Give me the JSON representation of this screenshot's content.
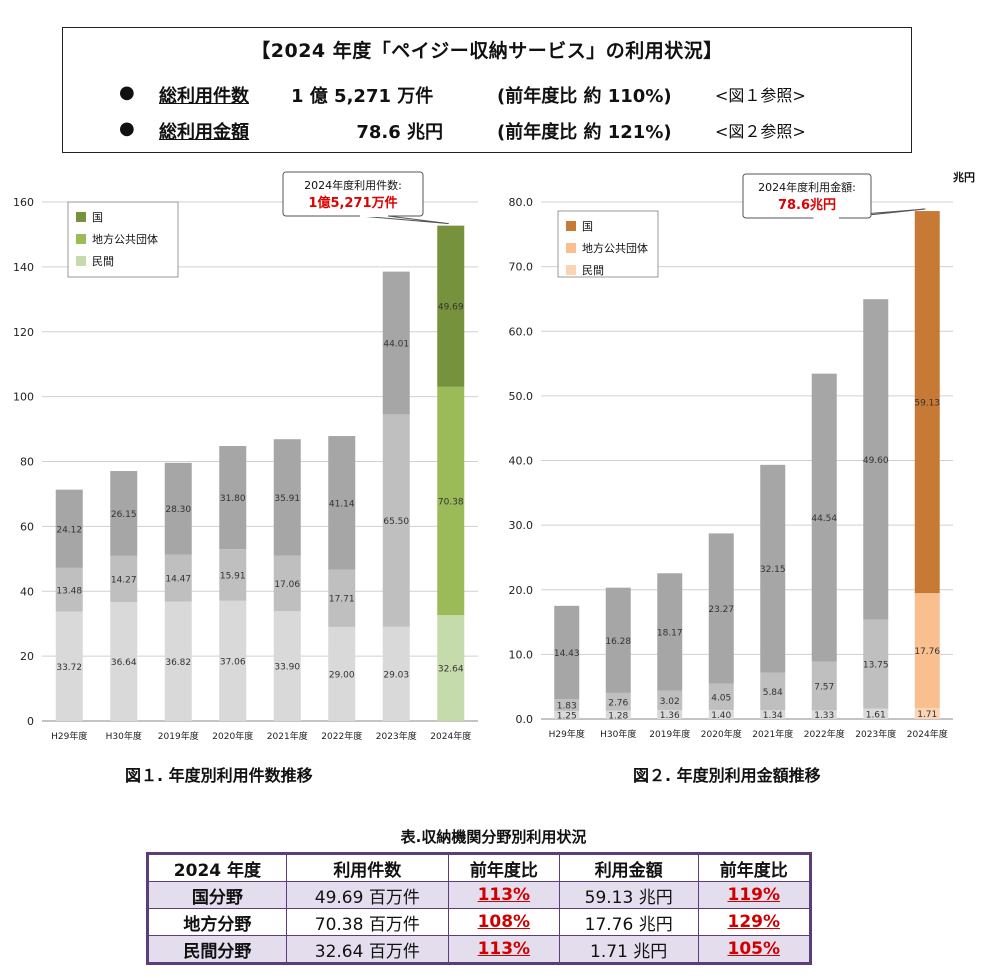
{
  "summary": {
    "title": "【2024 年度「ペイジー収納サービス」の利用状況】",
    "rows": [
      {
        "bullet": "●",
        "label": "総利用件数",
        "value": "1 億 5,271 万件",
        "compare": "(前年度比 約 110%)",
        "ref": "<図１参照>"
      },
      {
        "bullet": "●",
        "label": "総利用金額",
        "value": "78.6 兆円",
        "compare": "(前年度比 約 121%)",
        "ref": "<図２参照>"
      }
    ]
  },
  "captions": {
    "fig1": "図１. 年度別利用件数推移",
    "fig2": "図２. 年度別利用金額推移",
    "table": "表.収納機関分野別利用状況"
  },
  "chart_data": [
    {
      "type": "bar",
      "stacked": true,
      "categories": [
        "H29年度",
        "H30年度",
        "2019年度",
        "2020年度",
        "2021年度",
        "2022年度",
        "2023年度",
        "2024年度"
      ],
      "series": [
        {
          "name": "民間",
          "values": [
            33.72,
            36.64,
            36.82,
            37.06,
            33.9,
            29.0,
            29.03,
            32.64
          ],
          "labels": [
            "33.72",
            "36.64",
            "36.82",
            "37.06",
            "33.90",
            "29.00",
            "29.03",
            "32.64"
          ]
        },
        {
          "name": "地方公共団体",
          "values": [
            13.48,
            14.27,
            14.47,
            15.91,
            17.06,
            17.71,
            65.5,
            70.38
          ],
          "labels": [
            "13.48",
            "14.27",
            "14.47",
            "15.91",
            "17.06",
            "17.71",
            "65.50",
            "70.38"
          ]
        },
        {
          "name": "国",
          "values": [
            24.12,
            26.15,
            28.3,
            31.8,
            35.91,
            41.14,
            44.01,
            49.69
          ],
          "labels": [
            "24.12",
            "26.15",
            "28.30",
            "31.80",
            "35.91",
            "41.14",
            "44.01",
            "49.69"
          ]
        }
      ],
      "ylim": [
        0,
        160
      ],
      "yticks": [
        "0",
        "20",
        "40",
        "60",
        "80",
        "100",
        "120",
        "140",
        "160"
      ],
      "unit": "",
      "legend": [
        "国",
        "地方公共団体",
        "民間"
      ],
      "legend_position": "top-left",
      "colors": {
        "normal": [
          "#d9d9d9",
          "#bfbfbf",
          "#a6a6a6"
        ],
        "highlight": [
          "#c5dbab",
          "#9bbb59",
          "#76923c"
        ]
      },
      "legend_colors": [
        "#76923c",
        "#9bbb59",
        "#c5dbab"
      ],
      "callout": {
        "line1": "2024年度利用件数:",
        "line2": "1億5,271万件"
      },
      "grid": true
    },
    {
      "type": "bar",
      "stacked": true,
      "categories": [
        "H29年度",
        "H30年度",
        "2019年度",
        "2020年度",
        "2021年度",
        "2022年度",
        "2023年度",
        "2024年度"
      ],
      "series": [
        {
          "name": "民間",
          "values": [
            1.25,
            1.28,
            1.36,
            1.4,
            1.34,
            1.33,
            1.61,
            1.71
          ],
          "labels": [
            "1.25",
            "1.28",
            "1.36",
            "1.40",
            "1.34",
            "1.33",
            "1.61",
            "1.71"
          ]
        },
        {
          "name": "地方公共団体",
          "values": [
            1.83,
            2.76,
            3.02,
            4.05,
            5.84,
            7.57,
            13.75,
            17.76
          ],
          "labels": [
            "1.83",
            "2.76",
            "3.02",
            "4.05",
            "5.84",
            "7.57",
            "13.75",
            "17.76"
          ]
        },
        {
          "name": "国",
          "values": [
            14.43,
            16.28,
            18.17,
            23.27,
            32.15,
            44.54,
            49.6,
            59.13
          ],
          "labels": [
            "14.43",
            "16.28",
            "18.17",
            "23.27",
            "32.15",
            "44.54",
            "49.60",
            "59.13"
          ]
        }
      ],
      "ylim": [
        0,
        80
      ],
      "yticks": [
        "0.0",
        "10.0",
        "20.0",
        "30.0",
        "40.0",
        "50.0",
        "60.0",
        "70.0",
        "80.0"
      ],
      "unit": "兆円",
      "legend": [
        "国",
        "地方公共団体",
        "民間"
      ],
      "legend_position": "top-left",
      "colors": {
        "normal": [
          "#d9d9d9",
          "#bfbfbf",
          "#a6a6a6"
        ],
        "highlight": [
          "#fbd4b4",
          "#fabf8f",
          "#c77a36"
        ]
      },
      "legend_colors": [
        "#c77a36",
        "#fabf8f",
        "#fbd4b4"
      ],
      "callout": {
        "line1": "2024年度利用金額:",
        "line2": "78.6兆円"
      },
      "grid": true
    }
  ],
  "table": {
    "headers": [
      "2024 年度",
      "利用件数",
      "前年度比",
      "利用金額",
      "前年度比"
    ],
    "rows": [
      {
        "field": "国分野",
        "count": "49.69 百万件",
        "count_ratio": "113%",
        "amount": "59.13 兆円",
        "amount_ratio": "119%"
      },
      {
        "field": "地方分野",
        "count": "70.38 百万件",
        "count_ratio": "108%",
        "amount": "17.76 兆円",
        "amount_ratio": "129%"
      },
      {
        "field": "民間分野",
        "count": "32.64 百万件",
        "count_ratio": "113%",
        "amount": "1.71 兆円",
        "amount_ratio": "105%"
      }
    ]
  }
}
